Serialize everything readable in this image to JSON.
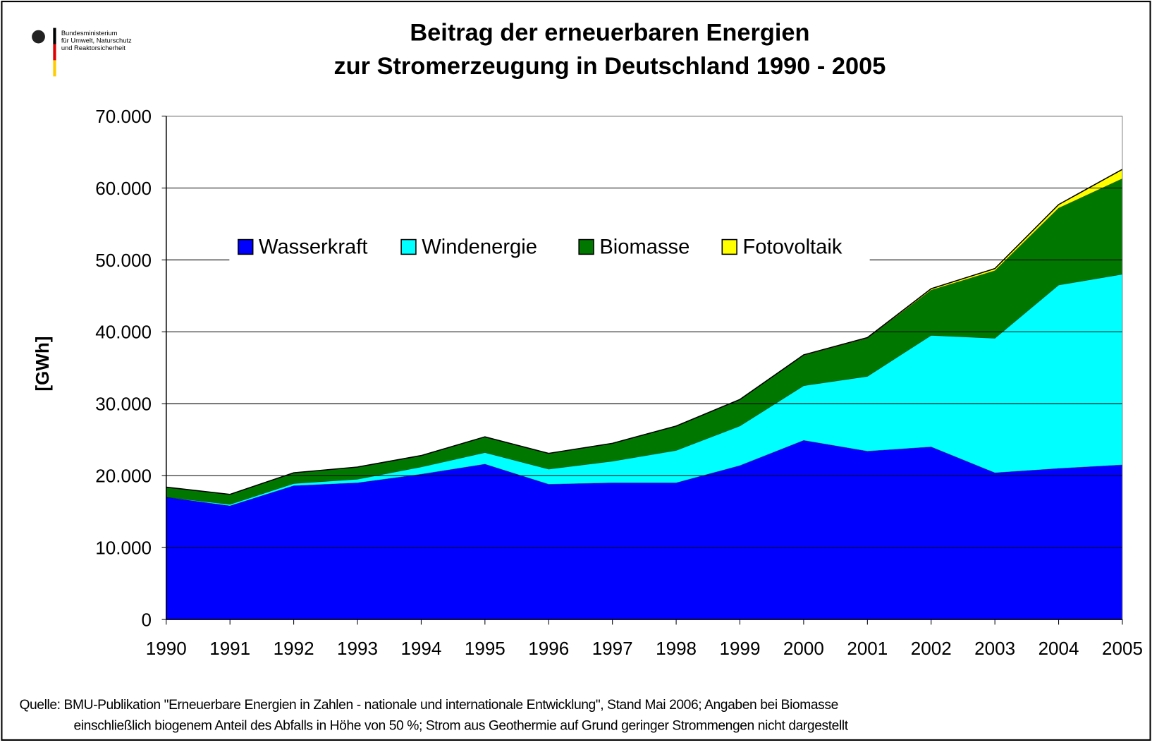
{
  "chart_data": {
    "type": "stacked_area",
    "title": [
      "Beitrag der erneuerbaren Energien",
      "zur Stromerzeugung in Deutschland 1990 - 2005"
    ],
    "logo_text": [
      "Bundesministerium",
      "für Umwelt, Naturschutz",
      "und Reaktorsicherheit"
    ],
    "y_label": "[GWh]",
    "categories": [
      "1990",
      "1991",
      "1992",
      "1993",
      "1994",
      "1995",
      "1996",
      "1997",
      "1998",
      "1999",
      "2000",
      "2001",
      "2002",
      "2003",
      "2004",
      "2005"
    ],
    "series": [
      {
        "name": "Wasserkraft",
        "color": "#0000ff",
        "values": [
          17000,
          15800,
          18600,
          19000,
          20200,
          21600,
          18800,
          19000,
          19000,
          21400,
          24900,
          23400,
          24000,
          20400,
          21000,
          21500
        ]
      },
      {
        "name": "Windenergie",
        "color": "#00ffff",
        "values": [
          0,
          200,
          300,
          500,
          1000,
          1600,
          2100,
          3000,
          4500,
          5500,
          7600,
          10400,
          15500,
          18700,
          25500,
          26500
        ]
      },
      {
        "name": "Biomasse",
        "color": "#007800",
        "values": [
          1400,
          1400,
          1500,
          1700,
          1600,
          2200,
          2200,
          2500,
          3400,
          3700,
          4200,
          5300,
          6300,
          9400,
          10700,
          13300
        ]
      },
      {
        "name": "Fotovoltaik",
        "color": "#ffff00",
        "values": [
          0,
          0,
          0,
          0,
          0,
          0,
          0,
          0,
          0,
          0,
          100,
          100,
          200,
          300,
          500,
          1300
        ]
      }
    ],
    "ylim": [
      0,
      70000
    ],
    "yticks": [
      0,
      {
        "value": 10000,
        "label": "10.000"
      },
      {
        "value": 20000,
        "label": "20.000"
      },
      {
        "value": 30000,
        "label": "30.000"
      },
      {
        "value": 40000,
        "label": "40.000"
      },
      {
        "value": 50000,
        "label": "50.000"
      },
      {
        "value": 60000,
        "label": "60.000"
      },
      {
        "value": 70000,
        "label": "70.000"
      }
    ],
    "grid": true,
    "legend": "top",
    "source": [
      "Quelle: BMU-Publikation \"Erneuerbare Energien in Zahlen - nationale und internationale Entwicklung\", Stand Mai 2006;  Angaben bei Biomasse",
      "einschließlich biogenem Anteil des Abfalls in Höhe von 50 %;  Strom aus Geothermie auf Grund geringer Strommengen nicht dargestellt"
    ]
  }
}
